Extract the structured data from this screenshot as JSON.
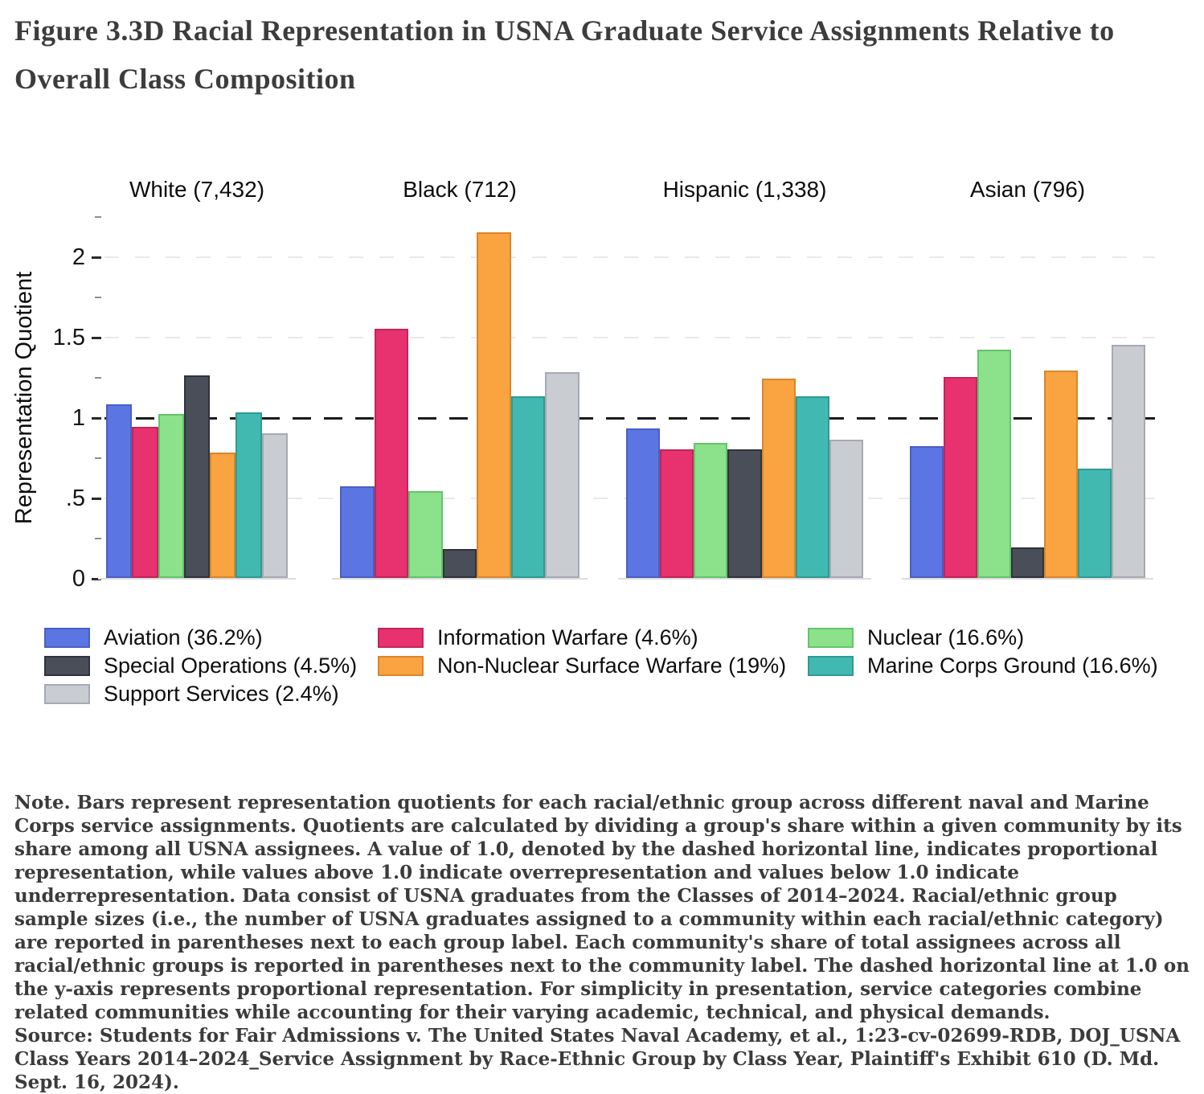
{
  "title": "Figure 3.3D Racial Representation in USNA Graduate Service Assignments Relative to Overall Class Composition",
  "chart_data": {
    "type": "bar",
    "ylabel": "Representation Quotient",
    "ylim": [
      0,
      2.25
    ],
    "yticks_major": [
      0,
      0.5,
      1,
      1.5,
      2
    ],
    "ytick_labels": [
      "0",
      ".5",
      "1",
      "1.5",
      "2"
    ],
    "yticks_minor": [
      0.25,
      0.75,
      1.25,
      1.75,
      2.25
    ],
    "gridlines_light": [
      0.5,
      1.5,
      2.0
    ],
    "reference_line": 1.0,
    "grid": true,
    "legend_position": "below",
    "series": [
      {
        "id": "aviation",
        "name": "Aviation (36.2%)",
        "fill": "#5b76e3",
        "border": "#4a5fc0"
      },
      {
        "id": "information-warfare",
        "name": "Information Warfare (4.6%)",
        "fill": "#e8316f",
        "border": "#c2255a"
      },
      {
        "id": "nuclear",
        "name": "Nuclear (16.6%)",
        "fill": "#8ce28b",
        "border": "#62c46c"
      },
      {
        "id": "special-operations",
        "name": "Special Operations (4.5%)",
        "fill": "#4a4e58",
        "border": "#30333b"
      },
      {
        "id": "non-nuclear-surface-warfare",
        "name": "Non-Nuclear Surface Warfare (19%)",
        "fill": "#f9a341",
        "border": "#d9862b"
      },
      {
        "id": "marine-corps-ground",
        "name": "Marine Corps Ground (16.6%)",
        "fill": "#41b9b1",
        "border": "#2f9a93"
      },
      {
        "id": "support-services",
        "name": "Support Services (2.4%)",
        "fill": "#c9ccd1",
        "border": "#a6aab1"
      }
    ],
    "panels": [
      {
        "label": "White (7,432)",
        "values": [
          1.08,
          0.94,
          1.02,
          1.26,
          0.78,
          1.03,
          0.9
        ]
      },
      {
        "label": "Black (712)",
        "values": [
          0.57,
          1.55,
          0.54,
          0.18,
          2.15,
          1.13,
          1.28
        ]
      },
      {
        "label": "Hispanic (1,338)",
        "values": [
          0.93,
          0.8,
          0.84,
          0.8,
          1.24,
          1.13,
          0.86
        ]
      },
      {
        "label": "Asian (796)",
        "values": [
          0.82,
          1.25,
          1.42,
          0.19,
          1.29,
          0.68,
          1.45
        ]
      }
    ]
  },
  "legend": {
    "columns": [
      [
        0,
        3,
        6
      ],
      [
        1,
        4
      ],
      [
        2,
        5
      ]
    ]
  },
  "note": "Note. Bars represent representation quotients for each racial/ethnic group across different naval and Marine Corps service assignments. Quotients are calculated by dividing a group's share within a given community by its share among all USNA assignees. A value of 1.0, denoted by the dashed horizontal line, indicates proportional representation, while values above 1.0 indicate overrepresentation and values below 1.0 indicate underrepresentation. Data consist of USNA graduates from the Classes of 2014–2024. Racial/ethnic group sample sizes (i.e., the number of USNA graduates assigned to a community within each racial/ethnic category) are reported in parentheses next to each group label. Each community's share of total assignees across all racial/ethnic groups is reported in parentheses next to the community label. The dashed horizontal line at 1.0 on the y-axis represents proportional representation. For simplicity in presentation, service categories combine related communities while accounting for their varying academic, technical, and physical demands.",
  "source": "Source: Students for Fair Admissions v. The United States Naval Academy, et al., 1:23-cv-02699-RDB, DOJ_USNA Class Years 2014–2024_Service Assignment by Race-Ethnic Group by Class Year, Plaintiff's Exhibit 610 (D. Md. Sept. 16, 2024)."
}
